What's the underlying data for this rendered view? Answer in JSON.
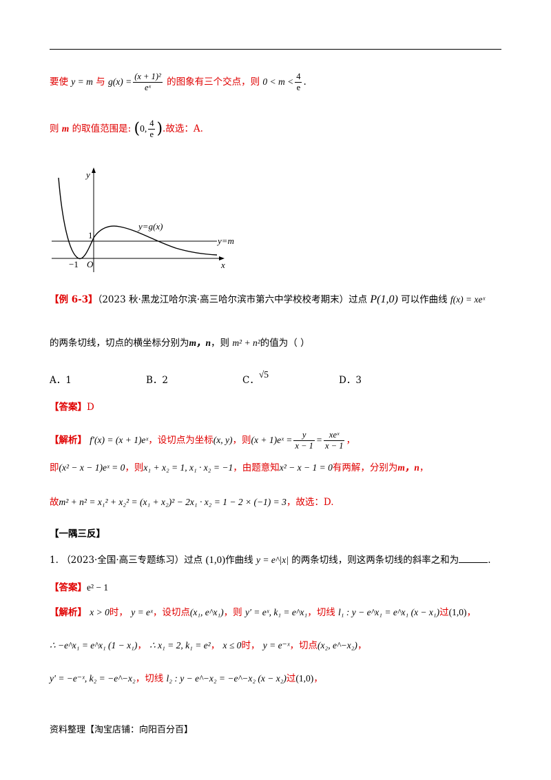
{
  "line1": {
    "pre": "要使",
    "y_eq_m": "y = m",
    "with": "与",
    "g_of_x": "g(x) =",
    "numerator": "(x + 1)²",
    "denominator": "eˣ",
    "mid": "的图象有三个交点，则",
    "ineq": "0 < m <",
    "frac_num": "4",
    "frac_den": "e",
    "end": "."
  },
  "line2": {
    "pre": "则",
    "m": "m",
    "mid": "的取值范围是:",
    "interval": "0,",
    "num": "4",
    "den": "e",
    "end": ".故选：A."
  },
  "graph": {
    "y_axis": "y",
    "x_axis": "x",
    "origin": "O",
    "tick_one": "1",
    "tick_neg_one": "−1",
    "curve_label": "y=g(x)",
    "line_label": "y=m"
  },
  "example": {
    "tag": "【例 6-3】",
    "source": "（2023 秋·黑龙江哈尔滨·高三哈尔滨市第六中学校校考期末）过点",
    "point": "P(1,0)",
    "mid": "可以作曲线",
    "func": "f(x) = xeˣ",
    "line2a": "的两条切线，切点的横坐标分别为",
    "mn": "m，n",
    "line2b": "，则",
    "expr": "m² + n²",
    "line2c": "的值为（     ）"
  },
  "options": {
    "a": "A．1",
    "b": "B．2",
    "c": "C．",
    "c_val": "√5",
    "d": "D．3"
  },
  "answer1": {
    "tag": "【答案】",
    "value": "D"
  },
  "analysis1": {
    "tag": "【解析】",
    "deriv": "f′(x) = (x + 1)eˣ",
    "t1": "，设切点为坐标",
    "xy": "(x, y)",
    "t2": "，则",
    "lhs": "(x + 1)eˣ =",
    "f1num": "y",
    "f1den": "x − 1",
    "eq": "=",
    "f2num": "xeˣ",
    "f2den": "x − 1",
    "t3": "，"
  },
  "analysis2": {
    "pre": "即",
    "eq": "(x² − x − 1)eˣ = 0",
    "t1": "，则",
    "vieta": "x₁ + x₂ = 1, x₁ · x₂ = −1",
    "t2": "，由题意知",
    "quad": "x² − x − 1 = 0",
    "t3": "有两解，分别为",
    "mn": "m，n",
    "t4": "，"
  },
  "analysis3": {
    "pre": "故",
    "eq": "m² + n² = x₁² + x₂² = (x₁ + x₂)² − 2x₁ · x₂ = 1 − 2 × (−1) = 3",
    "end": "，故选：D."
  },
  "section": "【一隅三反】",
  "q1": {
    "num": "1.",
    "source": "（2023·全国·高三专题练习）过点",
    "point": "(1,0)",
    "mid": "作曲线",
    "curve": "y = e^|x|",
    "end": "的两条切线，则这两条切线的斜率之和为",
    "tail": "."
  },
  "answer2": {
    "tag": "【答案】",
    "value": "e² − 1"
  },
  "analysis4": {
    "tag": "【解析】",
    "c1": "x > 0",
    "t1": "时，",
    "c2": "y = eˣ",
    "t2": "，设切点",
    "c3": "(x₁, e^x₁)",
    "t3": "，则",
    "c4": "y′ = eˣ, k₁ = e^x₁",
    "t4": "，切线",
    "c5": "l₁ : y − e^x₁ = e^x₁ (x − x₁)",
    "t5": "过",
    "c6": "(1,0)",
    "t6": "，"
  },
  "analysis5": {
    "c1": "∴ −e^x₁ = e^x₁ (1 − x₁)",
    "t1": "，",
    "c2": "∴ x₁ = 2, k₁ = e²",
    "t2": "，",
    "c3": "x ≤ 0",
    "t3": "时，",
    "c4": "y = e⁻ˣ",
    "t4": "，切点",
    "c5": "(x₂, e^−x₂)",
    "t5": "，"
  },
  "analysis6": {
    "c1": "y′ = −e⁻ˣ, k₂ = −e^−x₂",
    "t1": "，切线",
    "c2": "l₂ : y − e^−x₂ = −e^−x₂ (x − x₂)",
    "t2": "过",
    "c3": "(1,0)",
    "t3": "，"
  },
  "footer": "资料整理【淘宝店铺：向阳百分百】"
}
